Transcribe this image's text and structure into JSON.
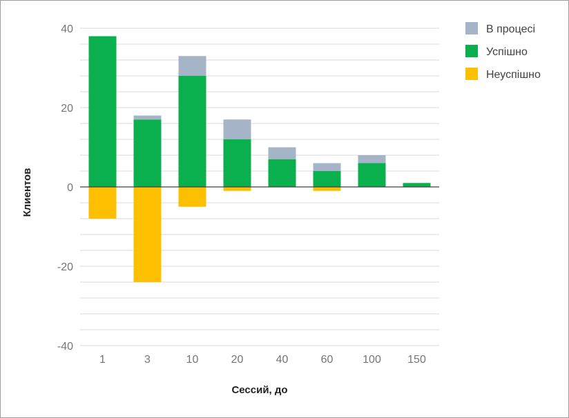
{
  "chart_data": {
    "type": "bar",
    "stacked": true,
    "categories": [
      "1",
      "3",
      "10",
      "20",
      "40",
      "60",
      "100",
      "150"
    ],
    "series": [
      {
        "name": "Успішно",
        "color": "#0bb04e",
        "values": [
          38,
          17,
          28,
          12,
          7,
          4,
          6,
          1
        ]
      },
      {
        "name": "В процесі",
        "color": "#a6b4c8",
        "values": [
          0,
          1,
          5,
          5,
          3,
          2,
          2,
          0
        ]
      },
      {
        "name": "Неуспішно",
        "color": "#fcc000",
        "values": [
          -8,
          -24,
          -5,
          -1,
          0,
          -1,
          0,
          0
        ]
      }
    ],
    "legend_order": [
      "В процесі",
      "Успішно",
      "Неуспішно"
    ],
    "legend_position": "right",
    "xlabel": "Сессий, до",
    "ylabel": "Клиентов",
    "ylim": [
      -40,
      40
    ],
    "yticks": [
      "40",
      "20",
      "0",
      "-20",
      "-40"
    ],
    "grid": true
  }
}
